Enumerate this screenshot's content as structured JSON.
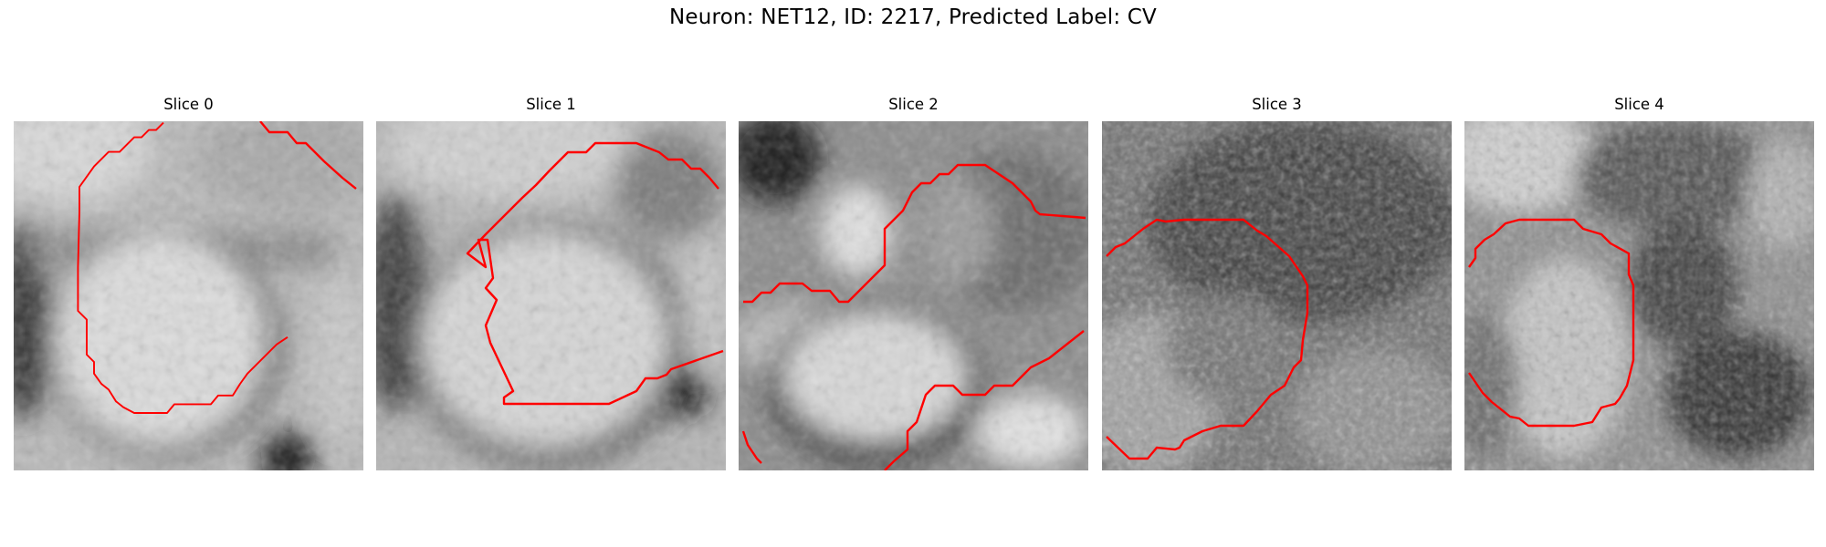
{
  "figure": {
    "title": "Neuron: NET12, ID: 2217, Predicted Label: CV"
  },
  "panels": [
    {
      "title": "Slice 0"
    },
    {
      "title": "Slice 1"
    },
    {
      "title": "Slice 2"
    },
    {
      "title": "Slice 3"
    },
    {
      "title": "Slice 4"
    }
  ],
  "colors": {
    "contour": "#ff0000",
    "background": "#ffffff"
  }
}
